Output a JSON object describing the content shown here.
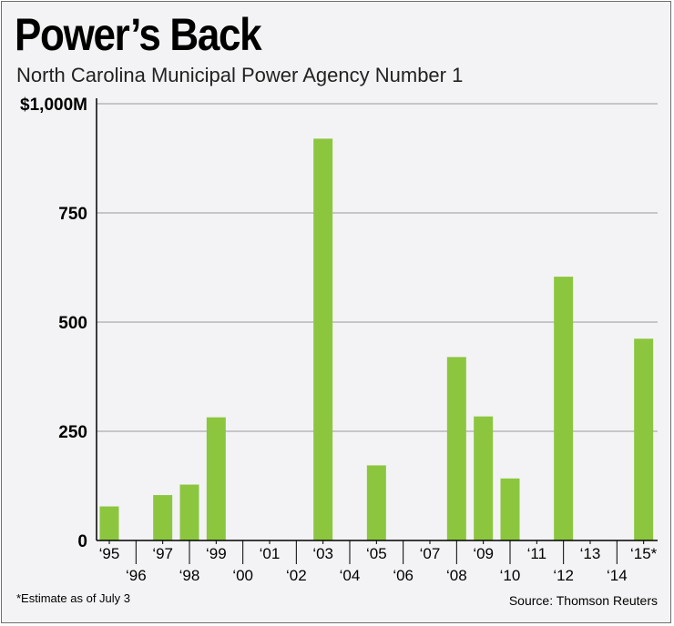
{
  "header": {
    "title": "Power’s Back",
    "subtitle": "North Carolina Municipal Power Agency Number 1"
  },
  "footer": {
    "footnote": "*Estimate as of July 3",
    "source": "Source: Thomson Reuters"
  },
  "colors": {
    "bar": "#8cc63f",
    "grid": "#9a9a9a",
    "background": "#f3f3f5"
  },
  "chart_data": {
    "type": "bar",
    "title": "Power’s Back",
    "subtitle": "North Carolina Municipal Power Agency Number 1",
    "xlabel": "",
    "ylabel": "",
    "ylim": [
      0,
      1000
    ],
    "y_ticks": [
      0,
      250,
      500,
      750,
      1000
    ],
    "y_tick_labels": [
      "0",
      "250",
      "500",
      "750",
      "$1,000M"
    ],
    "grid": true,
    "legend": "none",
    "categories": [
      "‘95",
      "‘96",
      "‘97",
      "‘98",
      "‘99",
      "‘00",
      "‘01",
      "‘02",
      "‘03",
      "‘04",
      "‘05",
      "‘06",
      "‘07",
      "‘08",
      "‘09",
      "‘10",
      "‘11",
      "‘12",
      "‘13",
      "‘14",
      "‘15*"
    ],
    "values": [
      78,
      0,
      104,
      128,
      282,
      0,
      0,
      0,
      920,
      0,
      172,
      0,
      0,
      420,
      284,
      142,
      0,
      604,
      0,
      0,
      462
    ]
  }
}
